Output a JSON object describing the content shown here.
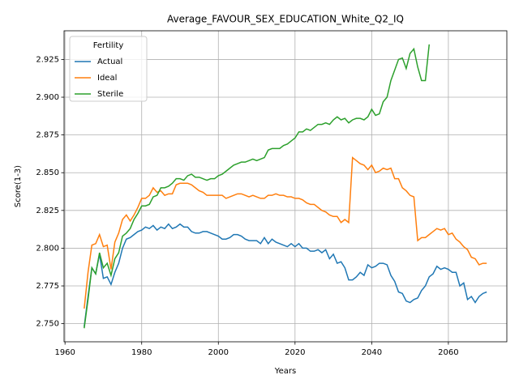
{
  "chart_data": {
    "type": "line",
    "title": "Average_FAVOUR_SEX_EDUCATION_White_Q2_IQ",
    "x_label": "Years",
    "y_label": "Score(1-3)",
    "grid": true,
    "legend_title": "Fertility",
    "legend_position": "upper left",
    "x": [
      1965,
      1966,
      1967,
      1968,
      1969,
      1970,
      1971,
      1972,
      1973,
      1974,
      1975,
      1976,
      1977,
      1978,
      1979,
      1980,
      1981,
      1982,
      1983,
      1984,
      1985,
      1986,
      1987,
      1988,
      1989,
      1990,
      1991,
      1992,
      1993,
      1994,
      1995,
      1996,
      1997,
      1998,
      1999,
      2000,
      2001,
      2002,
      2003,
      2004,
      2005,
      2006,
      2007,
      2008,
      2009,
      2010,
      2011,
      2012,
      2013,
      2014,
      2015,
      2016,
      2017,
      2018,
      2019,
      2020,
      2021,
      2022,
      2023,
      2024,
      2025,
      2026,
      2027,
      2028,
      2029,
      2030,
      2031,
      2032,
      2033,
      2034,
      2035,
      2036,
      2037,
      2038,
      2039,
      2040,
      2041,
      2042,
      2043,
      2044,
      2045,
      2046,
      2047,
      2048,
      2049,
      2050,
      2051,
      2052,
      2053,
      2054,
      2055,
      2056,
      2057,
      2058,
      2059,
      2060,
      2061,
      2062,
      2063,
      2064,
      2065,
      2066,
      2067,
      2068,
      2069,
      2070
    ],
    "series": [
      {
        "name": "Actual",
        "color": "#1f77b4",
        "values": [
          2.748,
          2.768,
          2.787,
          2.783,
          2.796,
          2.78,
          2.781,
          2.776,
          2.784,
          2.79,
          2.8,
          2.806,
          2.807,
          2.809,
          2.811,
          2.812,
          2.814,
          2.813,
          2.815,
          2.812,
          2.814,
          2.813,
          2.816,
          2.813,
          2.814,
          2.816,
          2.814,
          2.814,
          2.811,
          2.81,
          2.81,
          2.811,
          2.811,
          2.81,
          2.809,
          2.808,
          2.806,
          2.806,
          2.807,
          2.809,
          2.809,
          2.808,
          2.806,
          2.805,
          2.805,
          2.805,
          2.803,
          2.807,
          2.803,
          2.806,
          2.804,
          2.803,
          2.802,
          2.801,
          2.803,
          2.801,
          2.803,
          2.8,
          2.8,
          2.798,
          2.798,
          2.799,
          2.797,
          2.799,
          2.793,
          2.796,
          2.79,
          2.791,
          2.787,
          2.779,
          2.779,
          2.781,
          2.784,
          2.782,
          2.789,
          2.787,
          2.788,
          2.79,
          2.79,
          2.789,
          2.782,
          2.778,
          2.771,
          2.77,
          2.765,
          2.764,
          2.766,
          2.767,
          2.772,
          2.775,
          2.781,
          2.783,
          2.788,
          2.786,
          2.787,
          2.786,
          2.784,
          2.784,
          2.775,
          2.777,
          2.766,
          2.768,
          2.764,
          2.768,
          2.77,
          2.771
        ]
      },
      {
        "name": "Ideal",
        "color": "#ff7f0e",
        "values": [
          2.76,
          2.784,
          2.802,
          2.803,
          2.809,
          2.801,
          2.802,
          2.786,
          2.804,
          2.81,
          2.819,
          2.822,
          2.818,
          2.822,
          2.827,
          2.833,
          2.833,
          2.835,
          2.84,
          2.837,
          2.838,
          2.835,
          2.836,
          2.836,
          2.842,
          2.843,
          2.843,
          2.843,
          2.842,
          2.84,
          2.838,
          2.837,
          2.835,
          2.835,
          2.835,
          2.835,
          2.835,
          2.833,
          2.834,
          2.835,
          2.836,
          2.836,
          2.835,
          2.834,
          2.835,
          2.834,
          2.833,
          2.833,
          2.835,
          2.835,
          2.836,
          2.835,
          2.835,
          2.834,
          2.834,
          2.833,
          2.833,
          2.832,
          2.83,
          2.829,
          2.829,
          2.827,
          2.825,
          2.824,
          2.822,
          2.821,
          2.821,
          2.817,
          2.819,
          2.817,
          2.86,
          2.858,
          2.856,
          2.855,
          2.852,
          2.855,
          2.85,
          2.851,
          2.853,
          2.852,
          2.853,
          2.846,
          2.846,
          2.84,
          2.838,
          2.835,
          2.834,
          2.805,
          2.807,
          2.807,
          2.809,
          2.811,
          2.813,
          2.812,
          2.813,
          2.809,
          2.81,
          2.806,
          2.804,
          2.801,
          2.799,
          2.794,
          2.793,
          2.789,
          2.79,
          2.79
        ]
      },
      {
        "name": "Sterile",
        "color": "#2ca02c",
        "values": [
          2.747,
          2.766,
          2.787,
          2.783,
          2.797,
          2.787,
          2.79,
          2.782,
          2.793,
          2.797,
          2.808,
          2.81,
          2.813,
          2.819,
          2.823,
          2.828,
          2.828,
          2.829,
          2.834,
          2.835,
          2.84,
          2.84,
          2.841,
          2.843,
          2.846,
          2.846,
          2.845,
          2.848,
          2.849,
          2.847,
          2.847,
          2.846,
          2.845,
          2.846,
          2.846,
          2.848,
          2.849,
          2.851,
          2.853,
          2.855,
          2.856,
          2.857,
          2.857,
          2.858,
          2.859,
          2.858,
          2.859,
          2.86,
          2.865,
          2.866,
          2.866,
          2.866,
          2.868,
          2.869,
          2.871,
          2.873,
          2.877,
          2.877,
          2.879,
          2.878,
          2.88,
          2.882,
          2.882,
          2.883,
          2.882,
          2.885,
          2.887,
          2.885,
          2.886,
          2.883,
          2.885,
          2.886,
          2.886,
          2.885,
          2.887,
          2.892,
          2.888,
          2.889,
          2.897,
          2.9,
          2.911,
          2.918,
          2.925,
          2.926,
          2.919,
          2.929,
          2.932,
          2.92,
          2.911,
          2.911,
          2.935,
          null,
          null,
          null,
          null,
          null,
          null,
          null,
          null,
          null,
          null,
          null,
          null,
          null,
          null,
          null
        ]
      }
    ],
    "xlim": [
      1959.75,
      2075.25
    ],
    "xticks": [
      1960,
      1980,
      2000,
      2020,
      2040,
      2060
    ],
    "ylim": [
      2.738,
      2.944
    ],
    "yticks": [
      {
        "value": 2.75,
        "label": "2.750"
      },
      {
        "value": 2.775,
        "label": "2.775"
      },
      {
        "value": 2.8,
        "label": "2.800"
      },
      {
        "value": 2.825,
        "label": "2.825"
      },
      {
        "value": 2.85,
        "label": "2.850"
      },
      {
        "value": 2.875,
        "label": "2.875"
      },
      {
        "value": 2.9,
        "label": "2.900"
      },
      {
        "value": 2.925,
        "label": "2.925"
      }
    ]
  }
}
